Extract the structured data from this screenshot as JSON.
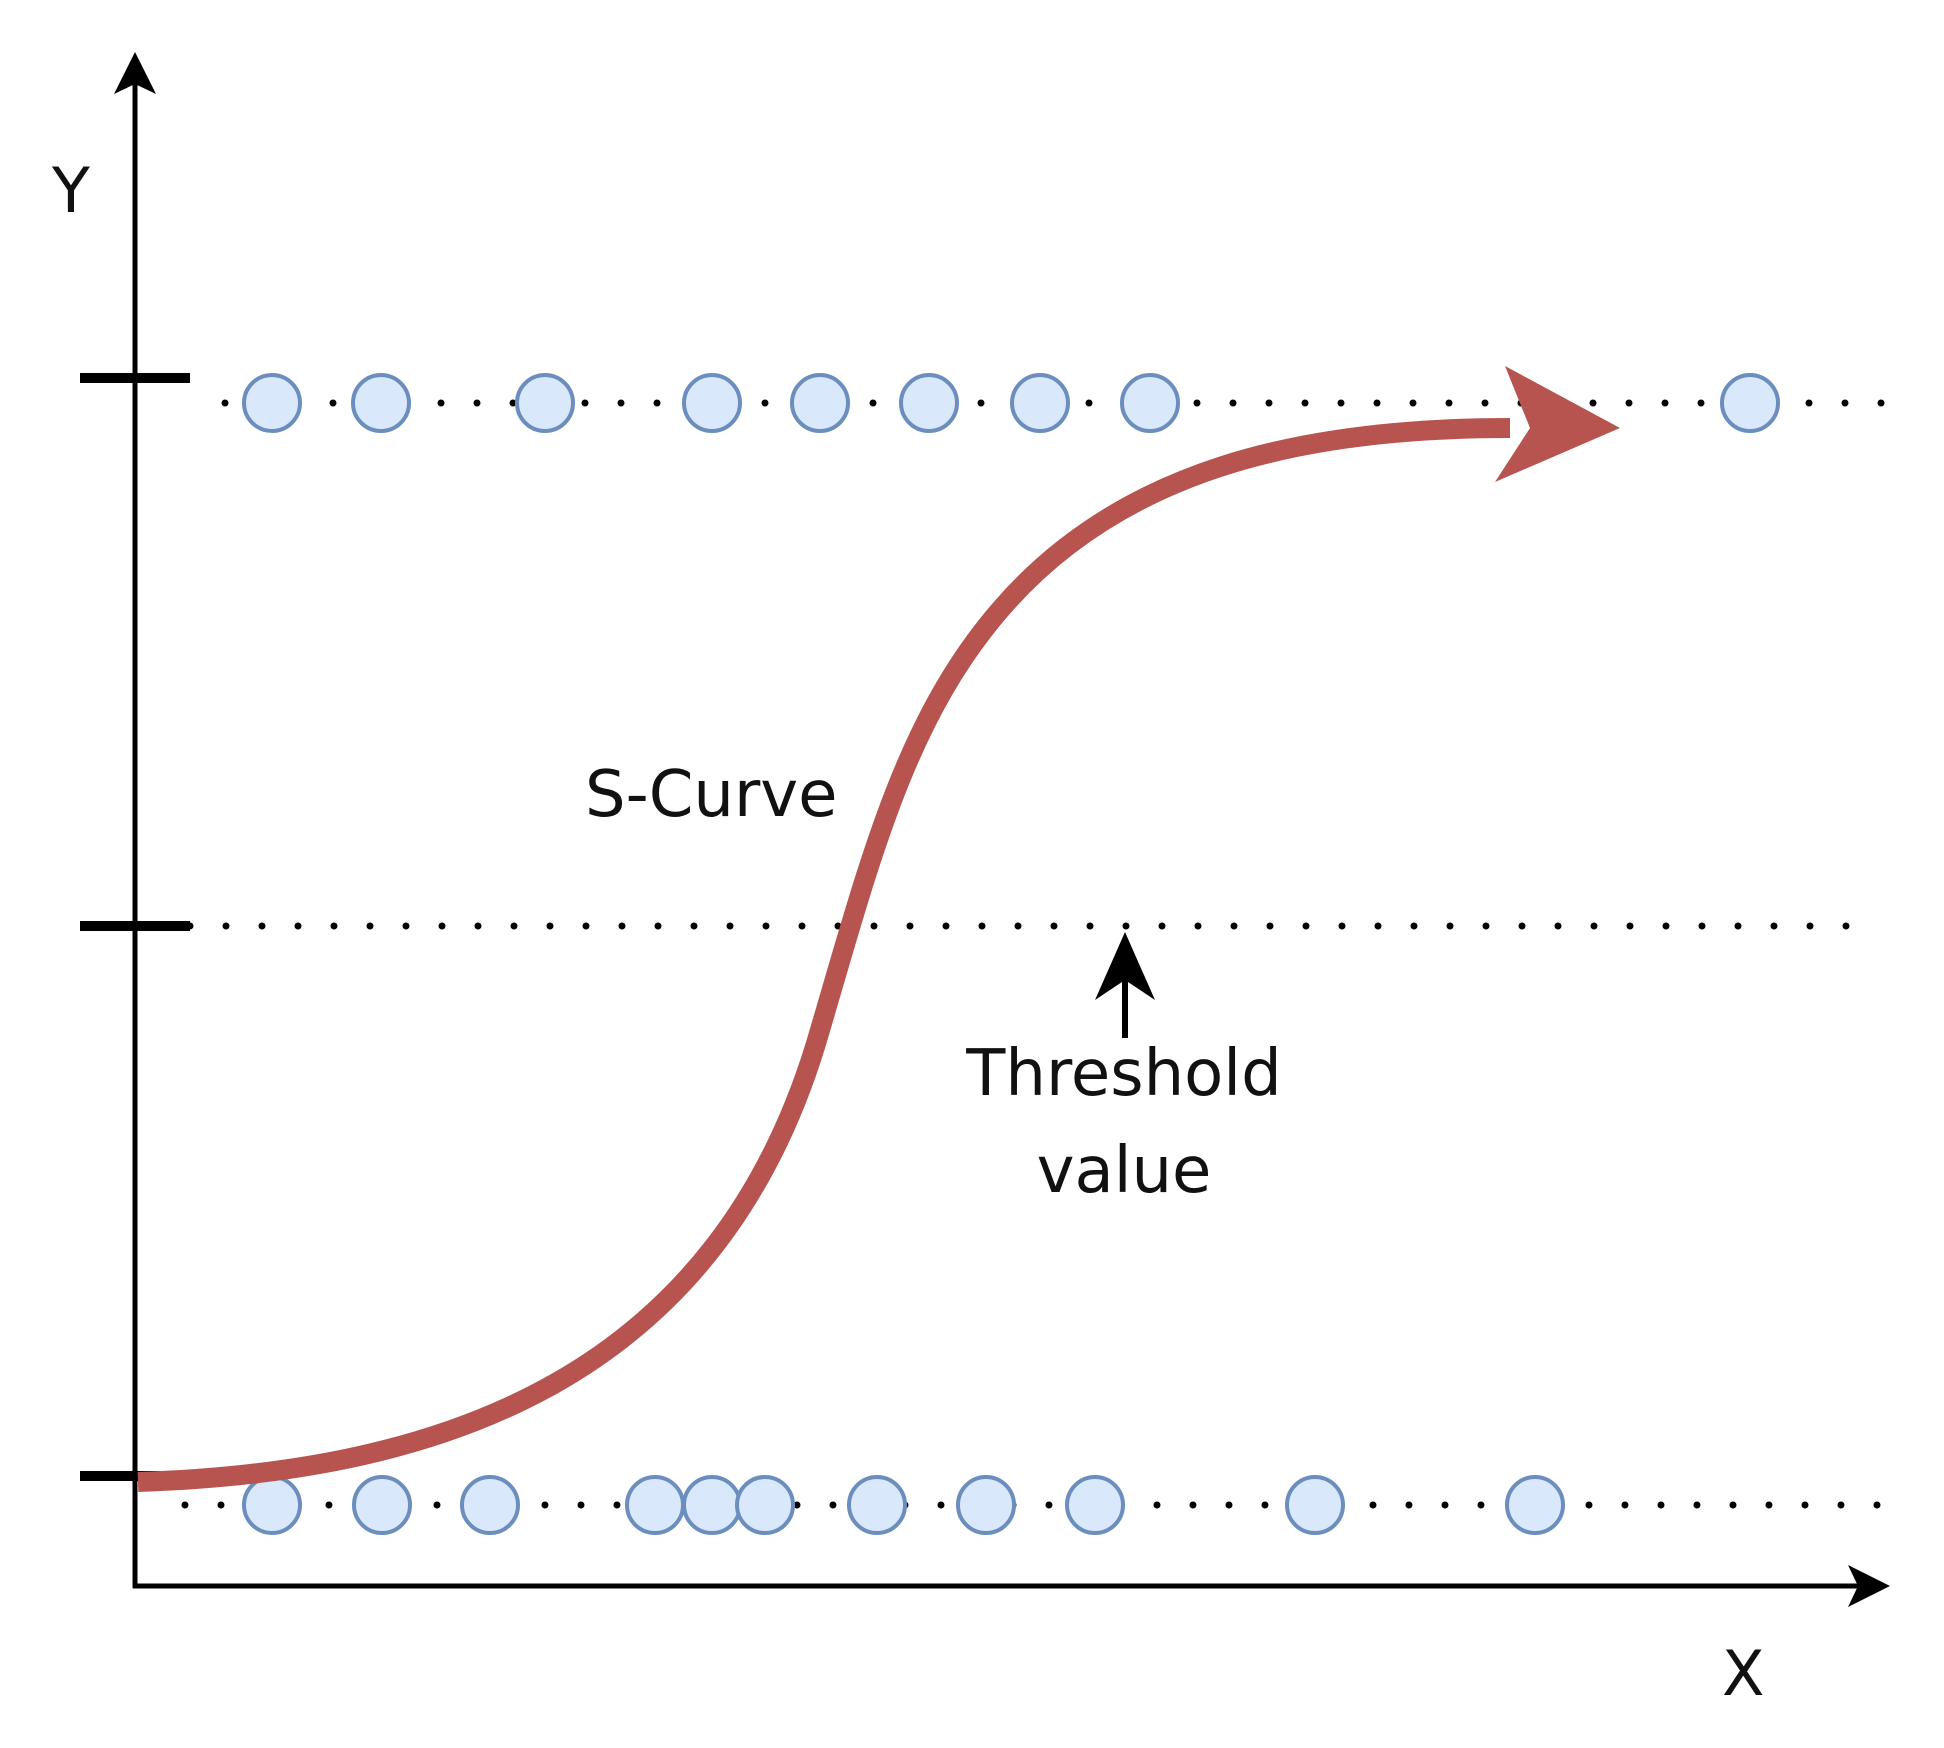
{
  "labels": {
    "y_axis": "Y",
    "x_axis": "X",
    "curve": "S-Curve",
    "threshold_line1": "Threshold",
    "threshold_line2": "value"
  },
  "colors": {
    "curve": "#b85450",
    "point_fill": "#dae8fc",
    "point_stroke": "#6c8ebf",
    "axis": "#000000",
    "background": "#ffffff"
  },
  "points": {
    "upper_row_count": 9,
    "lower_row_count": 11
  }
}
